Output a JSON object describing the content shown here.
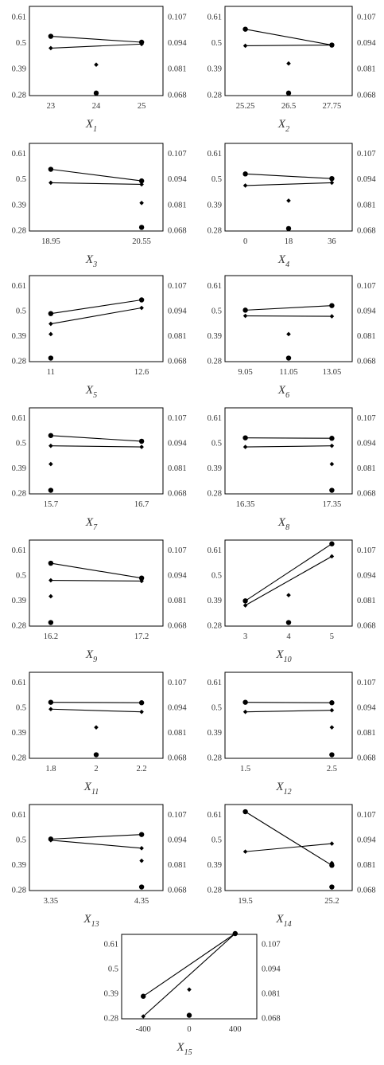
{
  "chart_data": [
    {
      "type": "scatter",
      "xlabel": "X",
      "xlabel_sub": "1",
      "x_ticks": [
        "23",
        "24",
        "25"
      ],
      "left_ticks": [
        "0.61",
        "0.5",
        "0.39",
        "0.28"
      ],
      "right_ticks": [
        "0.107",
        "0.094",
        "0.081",
        "0.068"
      ],
      "ylim_left": [
        0.28,
        0.61
      ],
      "ylim_right": [
        0.068,
        0.107
      ],
      "series": [
        {
          "marker": "circle",
          "axis": "left",
          "points": [
            [
              0,
              0.525
            ],
            [
              2,
              0.5
            ]
          ]
        },
        {
          "marker": "diamond",
          "axis": "left",
          "points": [
            [
              0,
              0.475
            ],
            [
              2,
              0.492
            ]
          ]
        },
        {
          "marker": "diamond",
          "axis": "left",
          "points": [
            [
              1,
              0.405
            ]
          ]
        },
        {
          "marker": "circle",
          "axis": "left",
          "points": [
            [
              1,
              0.285
            ]
          ]
        }
      ]
    },
    {
      "type": "scatter",
      "xlabel": "X",
      "xlabel_sub": "2",
      "x_ticks": [
        "25.25",
        "26.5",
        "27.75"
      ],
      "left_ticks": [
        "0.61",
        "0.5",
        "0.39",
        "0.28"
      ],
      "right_ticks": [
        "0.107",
        "0.094",
        "0.081",
        "0.068"
      ],
      "ylim_left": [
        0.28,
        0.61
      ],
      "ylim_right": [
        0.068,
        0.107
      ],
      "series": [
        {
          "marker": "circle",
          "axis": "left",
          "points": [
            [
              0,
              0.555
            ],
            [
              2,
              0.488
            ]
          ]
        },
        {
          "marker": "diamond",
          "axis": "left",
          "points": [
            [
              0,
              0.485
            ],
            [
              2,
              0.488
            ]
          ]
        },
        {
          "marker": "diamond",
          "axis": "left",
          "points": [
            [
              1,
              0.41
            ]
          ]
        },
        {
          "marker": "circle",
          "axis": "left",
          "points": [
            [
              1,
              0.285
            ]
          ]
        }
      ]
    },
    {
      "type": "scatter",
      "xlabel": "X",
      "xlabel_sub": "3",
      "x_ticks": [
        "18.95",
        "20.55"
      ],
      "left_ticks": [
        "0.61",
        "0.5",
        "0.39",
        "0.28"
      ],
      "right_ticks": [
        "0.107",
        "0.094",
        "0.081",
        "0.068"
      ],
      "ylim_left": [
        0.28,
        0.61
      ],
      "ylim_right": [
        0.068,
        0.107
      ],
      "series": [
        {
          "marker": "circle",
          "axis": "left",
          "points": [
            [
              0,
              0.54
            ],
            [
              1,
              0.49
            ]
          ]
        },
        {
          "marker": "diamond",
          "axis": "left",
          "points": [
            [
              0,
              0.482
            ],
            [
              1,
              0.475
            ]
          ]
        },
        {
          "marker": "diamond",
          "axis": "left",
          "points": [
            [
              1,
              0.395
            ]
          ]
        },
        {
          "marker": "circle",
          "axis": "left",
          "points": [
            [
              1,
              0.29
            ]
          ]
        }
      ]
    },
    {
      "type": "scatter",
      "xlabel": "X",
      "xlabel_sub": "4",
      "x_ticks": [
        "0",
        "18",
        "36"
      ],
      "left_ticks": [
        "0.61",
        "0.5",
        "0.39",
        "0.28"
      ],
      "right_ticks": [
        "0.107",
        "0.094",
        "0.081",
        "0.068"
      ],
      "ylim_left": [
        0.28,
        0.61
      ],
      "ylim_right": [
        0.068,
        0.107
      ],
      "series": [
        {
          "marker": "circle",
          "axis": "left",
          "points": [
            [
              0,
              0.52
            ],
            [
              2,
              0.5
            ]
          ]
        },
        {
          "marker": "diamond",
          "axis": "left",
          "points": [
            [
              0,
              0.47
            ],
            [
              2,
              0.482
            ]
          ]
        },
        {
          "marker": "diamond",
          "axis": "left",
          "points": [
            [
              1,
              0.405
            ]
          ]
        },
        {
          "marker": "circle",
          "axis": "left",
          "points": [
            [
              1,
              0.285
            ]
          ]
        }
      ]
    },
    {
      "type": "scatter",
      "xlabel": "X",
      "xlabel_sub": "5",
      "x_ticks": [
        "11",
        "12.6"
      ],
      "left_ticks": [
        "0.61",
        "0.5",
        "0.39",
        "0.28"
      ],
      "right_ticks": [
        "0.107",
        "0.094",
        "0.081",
        "0.068"
      ],
      "ylim_left": [
        0.28,
        0.61
      ],
      "ylim_right": [
        0.068,
        0.107
      ],
      "series": [
        {
          "marker": "circle",
          "axis": "left",
          "points": [
            [
              0,
              0.485
            ],
            [
              1,
              0.545
            ]
          ]
        },
        {
          "marker": "diamond",
          "axis": "left",
          "points": [
            [
              0,
              0.44
            ],
            [
              1,
              0.51
            ]
          ]
        },
        {
          "marker": "diamond",
          "axis": "left",
          "points": [
            [
              0,
              0.395
            ]
          ]
        },
        {
          "marker": "circle",
          "axis": "left",
          "points": [
            [
              0,
              0.29
            ]
          ]
        }
      ]
    },
    {
      "type": "scatter",
      "xlabel": "X",
      "xlabel_sub": "6",
      "x_ticks": [
        "9.05",
        "11.05",
        "13.05"
      ],
      "left_ticks": [
        "0.61",
        "0.5",
        "0.39",
        "0.28"
      ],
      "right_ticks": [
        "0.107",
        "0.094",
        "0.081",
        "0.068"
      ],
      "ylim_left": [
        0.28,
        0.61
      ],
      "ylim_right": [
        0.068,
        0.107
      ],
      "series": [
        {
          "marker": "circle",
          "axis": "left",
          "points": [
            [
              0,
              0.5
            ],
            [
              2,
              0.52
            ]
          ]
        },
        {
          "marker": "diamond",
          "axis": "left",
          "points": [
            [
              0,
              0.475
            ],
            [
              2,
              0.473
            ]
          ]
        },
        {
          "marker": "diamond",
          "axis": "left",
          "points": [
            [
              1,
              0.395
            ]
          ]
        },
        {
          "marker": "circle",
          "axis": "left",
          "points": [
            [
              1,
              0.29
            ]
          ]
        }
      ]
    },
    {
      "type": "scatter",
      "xlabel": "X",
      "xlabel_sub": "7",
      "x_ticks": [
        "15.7",
        "16.7"
      ],
      "left_ticks": [
        "0.61",
        "0.5",
        "0.39",
        "0.28"
      ],
      "right_ticks": [
        "0.107",
        "0.094",
        "0.081",
        "0.068"
      ],
      "ylim_left": [
        0.28,
        0.61
      ],
      "ylim_right": [
        0.068,
        0.107
      ],
      "series": [
        {
          "marker": "circle",
          "axis": "left",
          "points": [
            [
              0,
              0.53
            ],
            [
              1,
              0.505
            ]
          ]
        },
        {
          "marker": "diamond",
          "axis": "left",
          "points": [
            [
              0,
              0.485
            ],
            [
              1,
              0.48
            ]
          ]
        },
        {
          "marker": "diamond",
          "axis": "left",
          "points": [
            [
              0,
              0.405
            ]
          ]
        },
        {
          "marker": "circle",
          "axis": "left",
          "points": [
            [
              0,
              0.29
            ]
          ]
        }
      ]
    },
    {
      "type": "scatter",
      "xlabel": "X",
      "xlabel_sub": "8",
      "x_ticks": [
        "16.35",
        "17.35"
      ],
      "left_ticks": [
        "0.61",
        "0.5",
        "0.39",
        "0.28"
      ],
      "right_ticks": [
        "0.107",
        "0.094",
        "0.081",
        "0.068"
      ],
      "ylim_left": [
        0.28,
        0.61
      ],
      "ylim_right": [
        0.068,
        0.107
      ],
      "series": [
        {
          "marker": "circle",
          "axis": "left",
          "points": [
            [
              0,
              0.52
            ],
            [
              1,
              0.518
            ]
          ]
        },
        {
          "marker": "diamond",
          "axis": "left",
          "points": [
            [
              0,
              0.48
            ],
            [
              1,
              0.485
            ]
          ]
        },
        {
          "marker": "diamond",
          "axis": "left",
          "points": [
            [
              1,
              0.405
            ]
          ]
        },
        {
          "marker": "circle",
          "axis": "left",
          "points": [
            [
              1,
              0.29
            ]
          ]
        }
      ]
    },
    {
      "type": "scatter",
      "xlabel": "X",
      "xlabel_sub": "9",
      "x_ticks": [
        "16.2",
        "17.2"
      ],
      "left_ticks": [
        "0.61",
        "0.5",
        "0.39",
        "0.28"
      ],
      "right_ticks": [
        "0.107",
        "0.094",
        "0.081",
        "0.068"
      ],
      "ylim_left": [
        0.28,
        0.61
      ],
      "ylim_right": [
        0.068,
        0.107
      ],
      "series": [
        {
          "marker": "circle",
          "axis": "left",
          "points": [
            [
              0,
              0.55
            ],
            [
              1,
              0.485
            ]
          ]
        },
        {
          "marker": "diamond",
          "axis": "left",
          "points": [
            [
              0,
              0.475
            ],
            [
              1,
              0.472
            ]
          ]
        },
        {
          "marker": "diamond",
          "axis": "left",
          "points": [
            [
              0,
              0.405
            ]
          ]
        },
        {
          "marker": "circle",
          "axis": "left",
          "points": [
            [
              0,
              0.29
            ]
          ]
        }
      ]
    },
    {
      "type": "scatter",
      "xlabel": "X",
      "xlabel_sub": "10",
      "x_ticks": [
        "3",
        "4",
        "5"
      ],
      "left_ticks": [
        "0.61",
        "0.5",
        "0.39",
        "0.28"
      ],
      "right_ticks": [
        "0.107",
        "0.094",
        "0.081",
        "0.068"
      ],
      "ylim_left": [
        0.28,
        0.61
      ],
      "ylim_right": [
        0.068,
        0.107
      ],
      "series": [
        {
          "marker": "circle",
          "axis": "left",
          "points": [
            [
              0,
              0.385
            ],
            [
              2,
              0.635
            ]
          ]
        },
        {
          "marker": "diamond",
          "axis": "left",
          "points": [
            [
              0,
              0.365
            ],
            [
              2,
              0.58
            ]
          ]
        },
        {
          "marker": "diamond",
          "axis": "left",
          "points": [
            [
              1,
              0.41
            ]
          ]
        },
        {
          "marker": "circle",
          "axis": "left",
          "points": [
            [
              1,
              0.29
            ]
          ]
        }
      ]
    },
    {
      "type": "scatter",
      "xlabel": "X",
      "xlabel_sub": "11",
      "x_ticks": [
        "1.8",
        "2",
        "2.2"
      ],
      "left_ticks": [
        "0.61",
        "0.5",
        "0.39",
        "0.28"
      ],
      "right_ticks": [
        "0.107",
        "0.094",
        "0.081",
        "0.068"
      ],
      "ylim_left": [
        0.28,
        0.61
      ],
      "ylim_right": [
        0.068,
        0.107
      ],
      "series": [
        {
          "marker": "circle",
          "axis": "left",
          "points": [
            [
              0,
              0.52
            ],
            [
              2,
              0.518
            ]
          ]
        },
        {
          "marker": "diamond",
          "axis": "left",
          "points": [
            [
              0,
              0.49
            ],
            [
              2,
              0.478
            ]
          ]
        },
        {
          "marker": "diamond",
          "axis": "left",
          "points": [
            [
              1,
              0.41
            ]
          ]
        },
        {
          "marker": "circle",
          "axis": "left",
          "points": [
            [
              1,
              0.29
            ]
          ]
        }
      ]
    },
    {
      "type": "scatter",
      "xlabel": "X",
      "xlabel_sub": "12",
      "x_ticks": [
        "1.5",
        "2.5"
      ],
      "left_ticks": [
        "0.61",
        "0.5",
        "0.39",
        "0.28"
      ],
      "right_ticks": [
        "0.107",
        "0.094",
        "0.081",
        "0.068"
      ],
      "ylim_left": [
        0.28,
        0.61
      ],
      "ylim_right": [
        0.068,
        0.107
      ],
      "series": [
        {
          "marker": "circle",
          "axis": "left",
          "points": [
            [
              0,
              0.52
            ],
            [
              1,
              0.518
            ]
          ]
        },
        {
          "marker": "diamond",
          "axis": "left",
          "points": [
            [
              0,
              0.478
            ],
            [
              1,
              0.485
            ]
          ]
        },
        {
          "marker": "diamond",
          "axis": "left",
          "points": [
            [
              1,
              0.41
            ]
          ]
        },
        {
          "marker": "circle",
          "axis": "left",
          "points": [
            [
              1,
              0.29
            ]
          ]
        }
      ]
    },
    {
      "type": "scatter",
      "xlabel": "X",
      "xlabel_sub": "13",
      "x_ticks": [
        "3.35",
        "4.35"
      ],
      "left_ticks": [
        "0.61",
        "0.5",
        "0.39",
        "0.28"
      ],
      "right_ticks": [
        "0.107",
        "0.094",
        "0.081",
        "0.068"
      ],
      "ylim_left": [
        0.28,
        0.61
      ],
      "ylim_right": [
        0.068,
        0.107
      ],
      "series": [
        {
          "marker": "circle",
          "axis": "left",
          "points": [
            [
              0,
              0.5
            ],
            [
              1,
              0.52
            ]
          ]
        },
        {
          "marker": "diamond",
          "axis": "left",
          "points": [
            [
              0,
              0.495
            ],
            [
              1,
              0.46
            ]
          ]
        },
        {
          "marker": "diamond",
          "axis": "left",
          "points": [
            [
              1,
              0.405
            ]
          ]
        },
        {
          "marker": "circle",
          "axis": "left",
          "points": [
            [
              1,
              0.29
            ]
          ]
        }
      ]
    },
    {
      "type": "scatter",
      "xlabel": "X",
      "xlabel_sub": "14",
      "x_ticks": [
        "19.5",
        "25.2"
      ],
      "left_ticks": [
        "0.61",
        "0.5",
        "0.39",
        "0.28"
      ],
      "right_ticks": [
        "0.107",
        "0.094",
        "0.081",
        "0.068"
      ],
      "ylim_left": [
        0.28,
        0.61
      ],
      "ylim_right": [
        0.068,
        0.107
      ],
      "series": [
        {
          "marker": "circle",
          "axis": "left",
          "points": [
            [
              0,
              0.62
            ],
            [
              1,
              0.385
            ]
          ]
        },
        {
          "marker": "diamond",
          "axis": "left",
          "points": [
            [
              0,
              0.445
            ],
            [
              1,
              0.48
            ]
          ]
        },
        {
          "marker": "diamond",
          "axis": "left",
          "points": [
            [
              1,
              0.395
            ]
          ]
        },
        {
          "marker": "circle",
          "axis": "left",
          "points": [
            [
              1,
              0.29
            ]
          ]
        }
      ]
    },
    {
      "type": "scatter",
      "xlabel": "X",
      "xlabel_sub": "15",
      "x_ticks": [
        "-400",
        "0",
        "400"
      ],
      "left_ticks": [
        "0.61",
        "0.5",
        "0.39",
        "0.28"
      ],
      "right_ticks": [
        "0.107",
        "0.094",
        "0.081",
        "0.068"
      ],
      "ylim_left": [
        0.28,
        0.61
      ],
      "ylim_right": [
        0.068,
        0.107
      ],
      "series": [
        {
          "marker": "circle",
          "axis": "left",
          "points": [
            [
              0,
              0.375
            ],
            [
              2,
              0.655
            ]
          ]
        },
        {
          "marker": "diamond",
          "axis": "left",
          "points": [
            [
              0,
              0.285
            ],
            [
              2,
              0.655
            ]
          ]
        },
        {
          "marker": "diamond",
          "axis": "left",
          "points": [
            [
              1,
              0.405
            ]
          ]
        },
        {
          "marker": "circle",
          "axis": "left",
          "points": [
            [
              1,
              0.29
            ]
          ]
        }
      ]
    }
  ]
}
